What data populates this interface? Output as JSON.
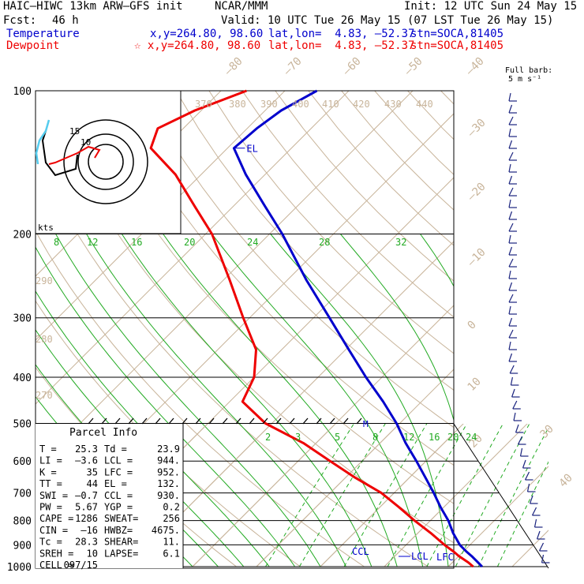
{
  "header": {
    "model": "HAIC–HIWC 13km ARW–GFS init",
    "org": "NCAR/MMM",
    "init": "Init: 12 UTC Sun 24 May 15",
    "fcst_label": "Fcst:",
    "fcst_value": "46 h",
    "valid": "Valid: 10 UTC Tue 26 May 15 (07 LST Tue 26 May 15)"
  },
  "legend": {
    "temperature": {
      "label": "Temperature",
      "xy": "x,y=264.80, 98.60",
      "latlon": "lat,lon=  4.83, –52.37",
      "stn": "stn=SOCA,81405",
      "color": "#0000cc"
    },
    "dewpoint": {
      "label": "Dewpoint",
      "xy": "☆ x,y=264.80, 98.60",
      "latlon": "lat,lon=  4.83, –52.37",
      "stn": "stn=SOCA,81405",
      "color": "#ee0000"
    }
  },
  "barb_title": "Full barb:",
  "barb_units": "5 m s⁻¹",
  "parcel": {
    "title": "Parcel Info",
    "rows": [
      [
        "T  =",
        "25.3",
        "Td =",
        "23.9"
      ],
      [
        "LI =",
        "–3.6",
        "LCL =",
        "944."
      ],
      [
        "K  =",
        "35",
        "LFC =",
        "952."
      ],
      [
        "TT =",
        "44",
        "EL  =",
        "132."
      ],
      [
        "SWI =",
        "–0.7",
        "CCL =",
        "930."
      ],
      [
        "PW =",
        "5.67",
        "YGP =",
        "0.2"
      ],
      [
        "CAPE =",
        "1286",
        "SWEAT=",
        "256"
      ],
      [
        "CIN =",
        "–16",
        "HWBZ=",
        "4675."
      ],
      [
        "Tc =",
        "28.3",
        "SHEAR=",
        "11."
      ],
      [
        "SREH =",
        "10",
        "LAPSE=",
        "6.1"
      ],
      [
        "CELL =",
        "097/15",
        "",
        ""
      ]
    ]
  },
  "chart_data": {
    "type": "line",
    "subtype": "skew-T log-p sounding",
    "pressure_levels": [
      "100",
      "200",
      "300",
      "400",
      "500",
      "600",
      "700",
      "800",
      "900",
      "1000"
    ],
    "temp_labels": [
      {
        "text": "–80"
      },
      {
        "text": "–70"
      },
      {
        "text": "–60"
      },
      {
        "text": "–50"
      },
      {
        "text": "–40"
      },
      {
        "text": "–30"
      },
      {
        "text": "–20"
      },
      {
        "text": "–10"
      },
      {
        "text": "0"
      },
      {
        "text": "10"
      },
      {
        "text": "20"
      },
      {
        "text": "30"
      },
      {
        "text": "40"
      }
    ],
    "theta_labels": [
      "370",
      "380",
      "390",
      "400",
      "410",
      "420",
      "430",
      "440",
      "290",
      "280",
      "270"
    ],
    "mixing_ratio_labels_top": [
      "8",
      "12",
      "16",
      "20",
      "24",
      "28",
      "32"
    ],
    "mixing_ratio_labels_bottom": [
      "2",
      "3",
      "5",
      "8",
      "12",
      "16",
      "20",
      "24"
    ],
    "annotations": [
      "EL",
      "CCL",
      "LCL",
      "LFC",
      "M"
    ],
    "hodograph": {
      "rings": [
        "15",
        "10"
      ],
      "units": "kts"
    },
    "series": [
      {
        "name": "Temperature",
        "color": "#0000cc",
        "p": [
          1000,
          980,
          950,
          930,
          900,
          850,
          800,
          750,
          700,
          650,
          600,
          550,
          500,
          450,
          400,
          350,
          300,
          250,
          200,
          175,
          150,
          132,
          120,
          110,
          100
        ],
        "t": [
          25.3,
          24.0,
          22.0,
          20.5,
          18.4,
          15.5,
          12.8,
          9.5,
          6.2,
          2.5,
          -1.5,
          -6.0,
          -10.5,
          -16.0,
          -22.5,
          -29.5,
          -37.5,
          -47.0,
          -58.0,
          -65.0,
          -73.0,
          -79.0,
          -78.5,
          -77.5,
          -75.0
        ]
      },
      {
        "name": "Dewpoint",
        "color": "#ee0000",
        "p": [
          1000,
          980,
          950,
          930,
          900,
          850,
          800,
          750,
          700,
          650,
          600,
          550,
          500,
          450,
          400,
          350,
          300,
          250,
          200,
          175,
          150,
          132,
          120,
          110,
          100
        ],
        "t": [
          23.9,
          22.5,
          20.0,
          18.5,
          16.0,
          12.0,
          7.5,
          3.0,
          -2.0,
          -8.5,
          -15.0,
          -22.0,
          -31.0,
          -38.0,
          -40.0,
          -44.0,
          -51.0,
          -59.0,
          -69.0,
          -76.0,
          -84.0,
          -92.0,
          -94.0,
          -91.0,
          -86.0
        ]
      }
    ]
  }
}
